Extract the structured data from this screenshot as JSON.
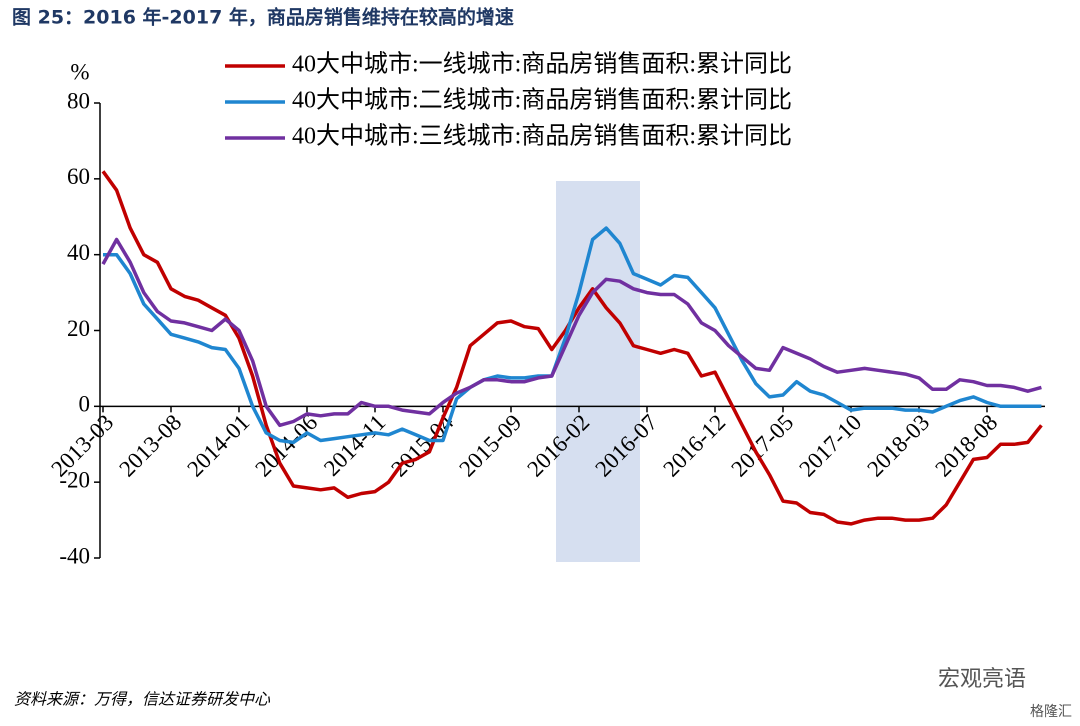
{
  "chart_data": {
    "type": "line",
    "title": "图 25：2016 年-2017 年，商品房销售维持在较高的增速",
    "y_unit": "%",
    "source": "资料来源：万得，信达证券研发中心",
    "categories": [
      "2013-03",
      null,
      null,
      null,
      null,
      "2013-08",
      null,
      null,
      null,
      null,
      "2014-01",
      null,
      null,
      null,
      null,
      "2014-06",
      null,
      null,
      null,
      null,
      "2014-11",
      null,
      null,
      null,
      null,
      "2015-04",
      null,
      null,
      null,
      null,
      "2015-09",
      null,
      null,
      null,
      null,
      "2016-02",
      null,
      null,
      null,
      null,
      "2016-07",
      null,
      null,
      null,
      null,
      "2016-12",
      null,
      null,
      null,
      null,
      "2017-05",
      null,
      null,
      null,
      null,
      "2017-10",
      null,
      null,
      null,
      null,
      "2018-03",
      null,
      null,
      null,
      null,
      "2018-08",
      null,
      null,
      null,
      null
    ],
    "ylim": [
      -40,
      80
    ],
    "yticks": [
      -40,
      -20,
      0,
      20,
      40,
      60,
      80
    ],
    "series": [
      {
        "name": "40大中城市:一线城市:商品房销售面积:累计同比",
        "color": "#c00000",
        "values": [
          62,
          57,
          47,
          40,
          38,
          31,
          29,
          28,
          26,
          24,
          18,
          8,
          -5,
          -15,
          -21,
          -21.5,
          -22,
          -21.5,
          -24,
          -23,
          -22.5,
          -20,
          -15,
          -14,
          -12,
          -3,
          5,
          16,
          19,
          22,
          22.5,
          21,
          20.5,
          15,
          20,
          26,
          31,
          26,
          22,
          16,
          15,
          14,
          15,
          14,
          8,
          9,
          2,
          -5,
          -12,
          -18,
          -25,
          -25.5,
          -28,
          -28.5,
          -30.5,
          -31,
          -30,
          -29.5,
          -29.5,
          -30,
          -30,
          -29.5,
          -26,
          -20,
          -14,
          -13.5,
          -10,
          -10,
          -9.5,
          -5
        ]
      },
      {
        "name": "40大中城市:二线城市:商品房销售面积:累计同比",
        "color": "#1f86d0",
        "values": [
          40,
          40,
          35,
          27,
          23,
          19,
          18,
          17,
          15.5,
          15,
          10,
          0,
          -7,
          -9,
          -9.5,
          -7,
          -9,
          -8.5,
          -8,
          -7.5,
          -7,
          -7.5,
          -6,
          -7.5,
          -9,
          -9,
          2,
          5,
          7,
          8,
          7.5,
          7.5,
          8,
          8,
          18,
          30,
          44,
          47,
          43,
          35,
          33.5,
          32,
          34.5,
          34,
          30,
          26,
          19,
          12,
          6,
          2.5,
          3,
          6.5,
          4,
          3,
          1,
          -1,
          -0.5,
          -0.5,
          -0.5,
          -1,
          -1,
          -1.5,
          0,
          1.5,
          2.5,
          1,
          0,
          0,
          0,
          0
        ]
      },
      {
        "name": "40大中城市:三线城市:商品房销售面积:累计同比",
        "color": "#7030a0",
        "values": [
          37.5,
          44,
          38,
          30,
          25,
          22.5,
          22,
          21,
          20,
          23,
          20,
          12,
          0,
          -5,
          -4,
          -2,
          -2.5,
          -2,
          -2,
          1,
          0,
          0,
          -1,
          -1.5,
          -2,
          1,
          3.5,
          5,
          7,
          7,
          6.5,
          6.5,
          7.5,
          8,
          16,
          24,
          30,
          33.5,
          33,
          31,
          30,
          29.5,
          29.5,
          27,
          22,
          20,
          16,
          13,
          10,
          9.5,
          15.5,
          14,
          12.5,
          10.5,
          9,
          9.5,
          10,
          9.5,
          9,
          8.5,
          7.5,
          4.5,
          4.5,
          7,
          6.5,
          5.5,
          5.5,
          5,
          4,
          5
        ]
      }
    ]
  },
  "watermark": {
    "brand": "宏观亮语",
    "site": "格隆汇"
  }
}
